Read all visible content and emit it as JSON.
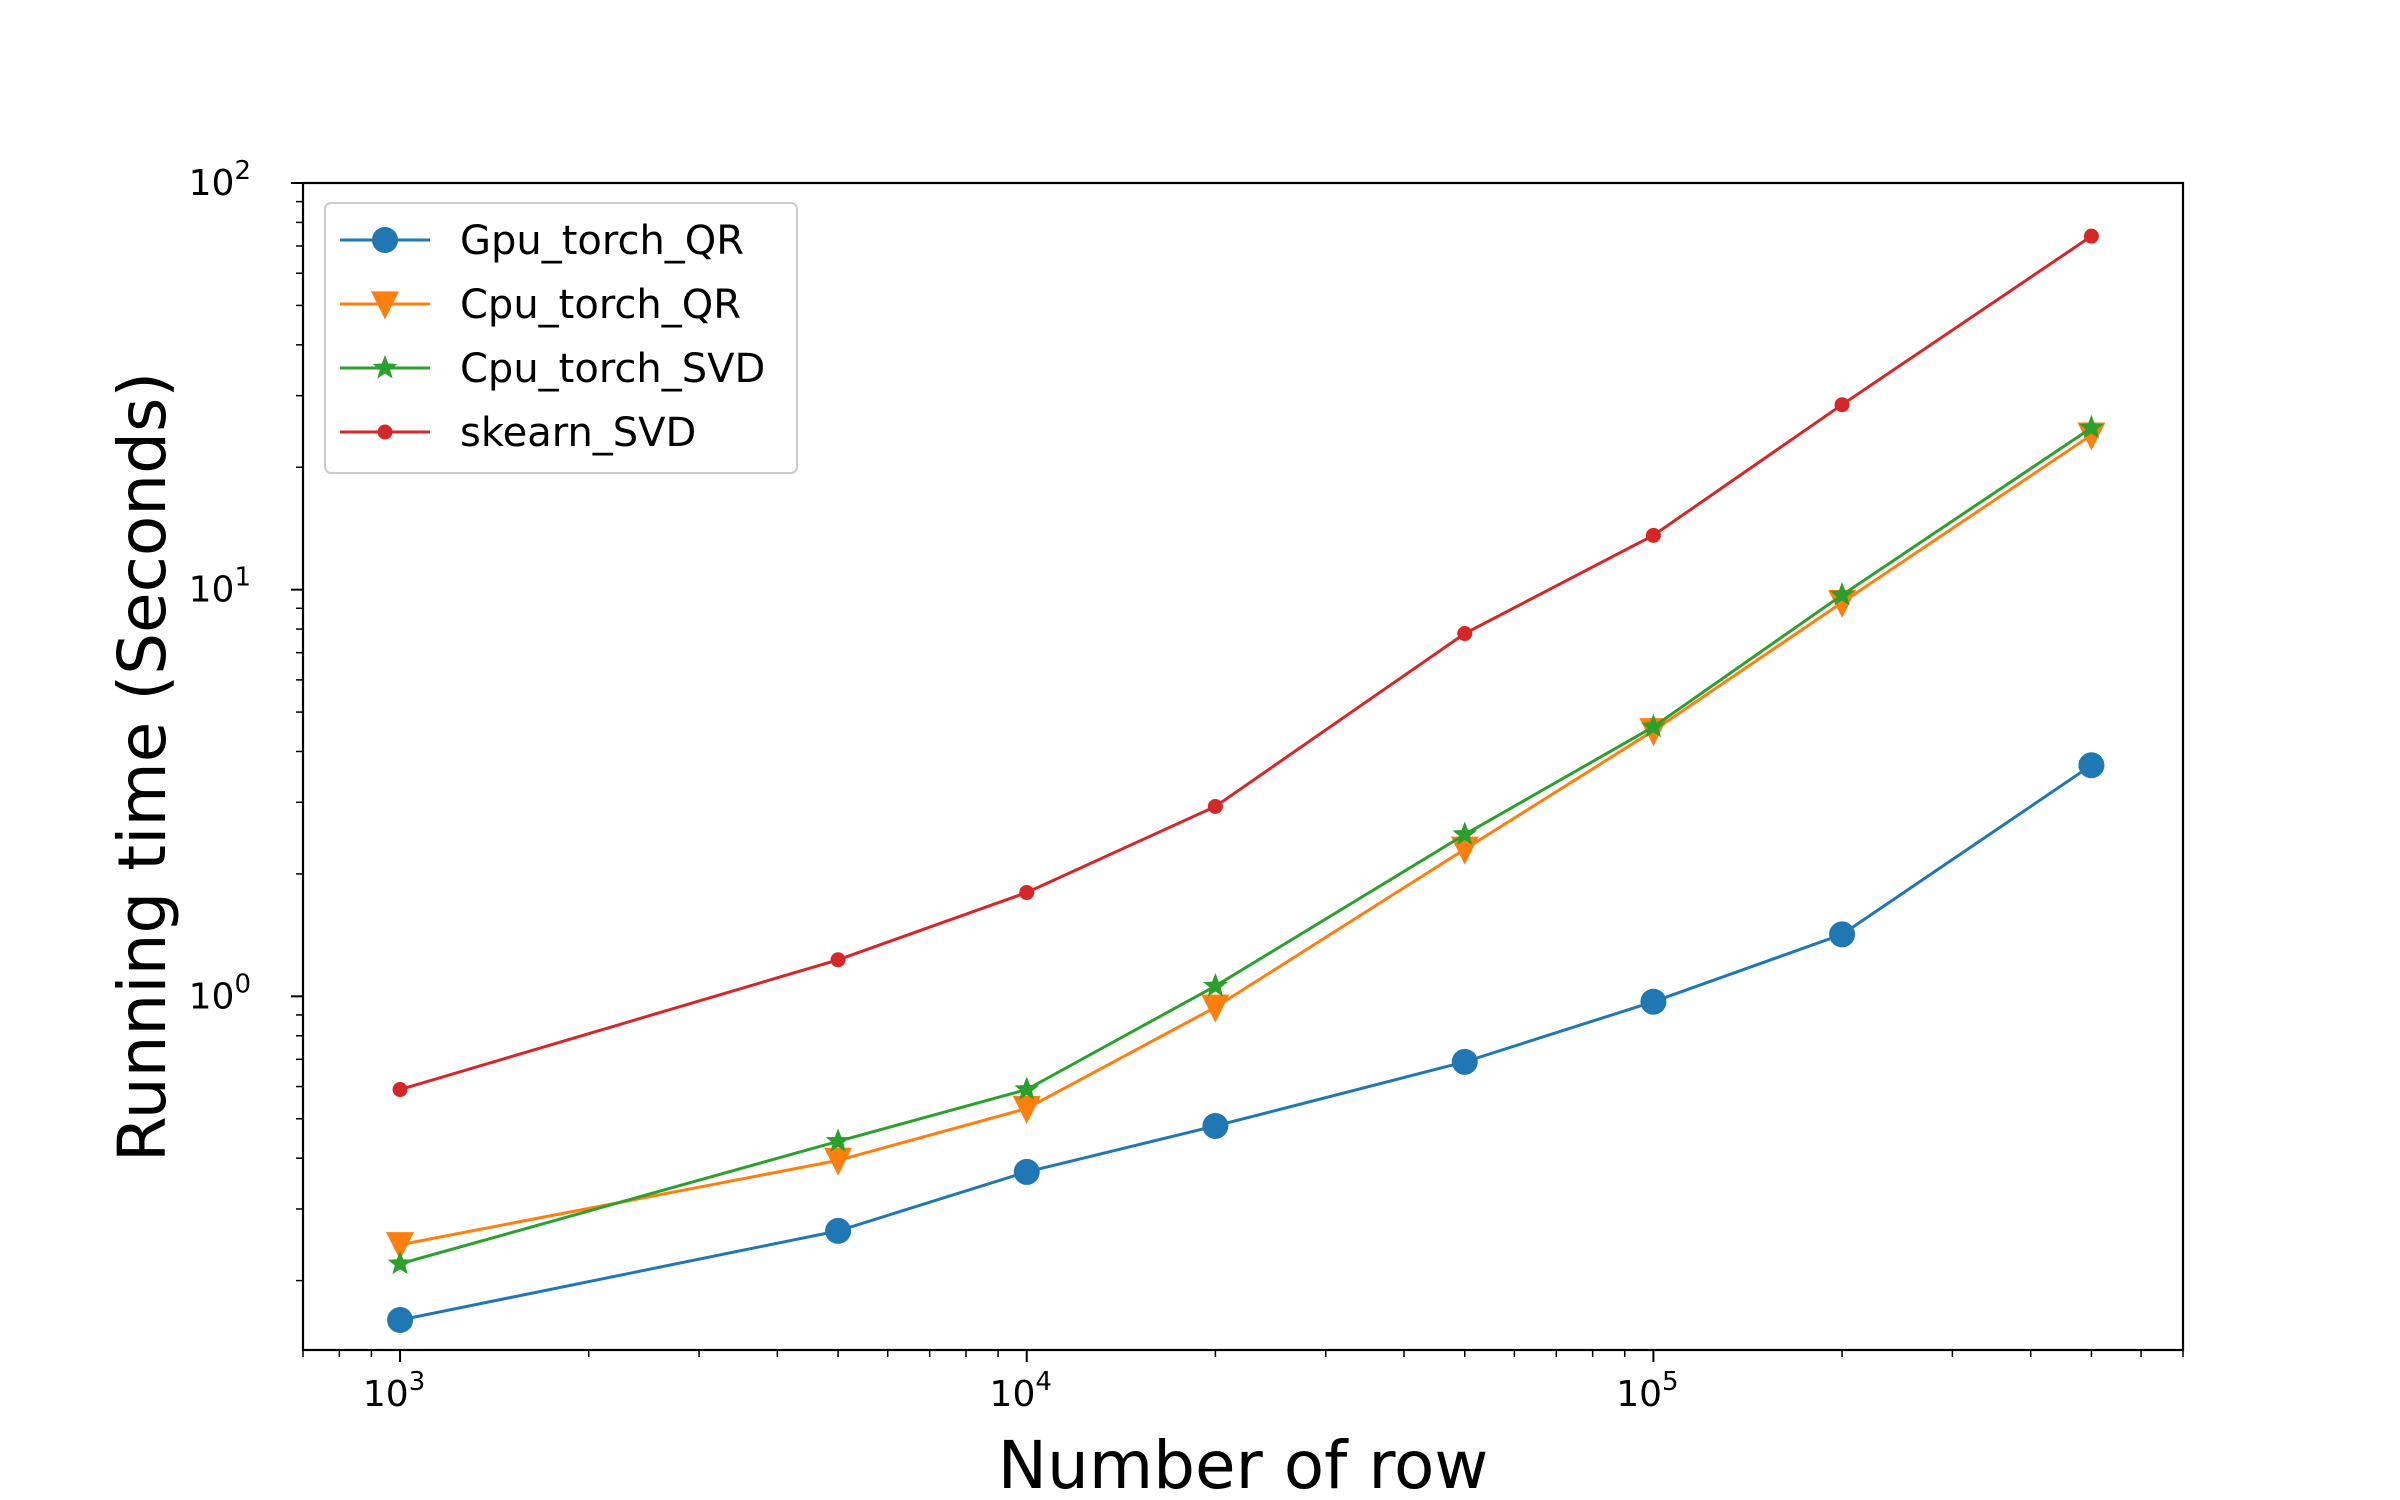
{
  "chart_data": {
    "type": "line",
    "xlabel": "Number of row",
    "ylabel": "Running time (Seconds)",
    "xscale": "log",
    "yscale": "log",
    "xlim": [
      700,
      700000
    ],
    "ylim": [
      0.135,
      100
    ],
    "grid": false,
    "legend_position": "top-left",
    "x_ticks": [
      {
        "base": "10",
        "exp": "3",
        "value": 1000
      },
      {
        "base": "10",
        "exp": "4",
        "value": 10000
      },
      {
        "base": "10",
        "exp": "5",
        "value": 100000
      }
    ],
    "y_ticks": [
      {
        "base": "10",
        "exp": "0",
        "value": 1
      },
      {
        "base": "10",
        "exp": "1",
        "value": 10
      },
      {
        "base": "10",
        "exp": "2",
        "value": 100
      }
    ],
    "x": [
      1000,
      5000,
      10000,
      20000,
      50000,
      100000,
      200000,
      500000
    ],
    "series": [
      {
        "name": "Gpu_torch_QR",
        "color": "#1f77b4",
        "marker": "circle",
        "values": [
          0.16,
          0.265,
          0.37,
          0.48,
          0.69,
          0.97,
          1.42,
          3.7
        ]
      },
      {
        "name": "Cpu_torch_QR",
        "color": "#ff7f0e",
        "marker": "triangle-down",
        "values": [
          0.245,
          0.395,
          0.53,
          0.94,
          2.3,
          4.5,
          9.3,
          24.0
        ]
      },
      {
        "name": "Cpu_torch_SVD",
        "color": "#2ca02c",
        "marker": "star",
        "values": [
          0.22,
          0.44,
          0.59,
          1.06,
          2.5,
          4.6,
          9.7,
          25.0
        ]
      },
      {
        "name": "skearn_SVD",
        "color": "#d62728",
        "marker": "small-dot",
        "values": [
          0.59,
          1.23,
          1.8,
          2.93,
          7.8,
          13.6,
          28.5,
          74.0
        ]
      }
    ]
  }
}
